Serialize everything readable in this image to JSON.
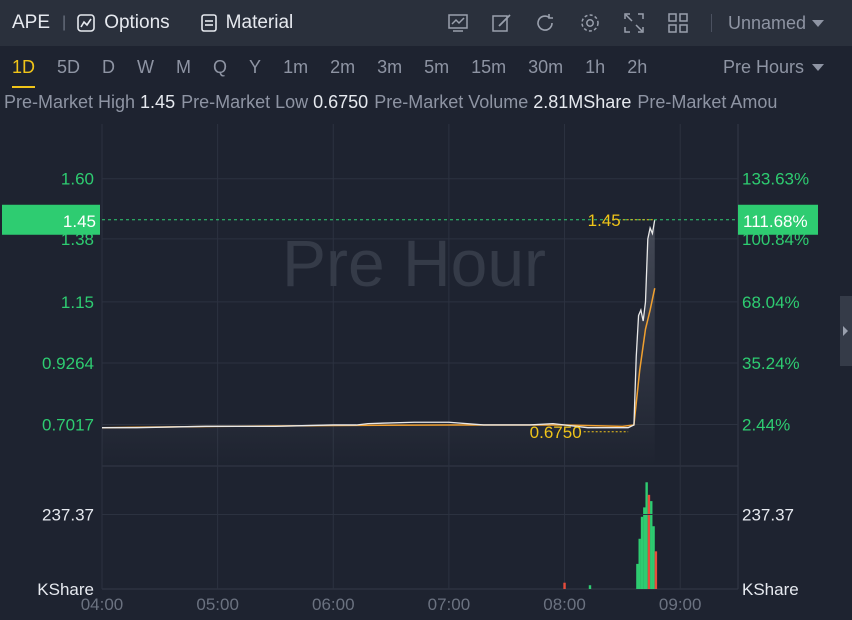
{
  "toolbar": {
    "symbol": "APE",
    "options_label": "Options",
    "material_label": "Material",
    "layout_name": "Unnamed",
    "icons": [
      "indicator-icon",
      "draw-icon",
      "refresh-icon",
      "settings-icon",
      "fullscreen-icon",
      "layout-grid-icon"
    ]
  },
  "periods": [
    "1D",
    "5D",
    "D",
    "W",
    "M",
    "Q",
    "Y",
    "1m",
    "2m",
    "3m",
    "5m",
    "15m",
    "30m",
    "1h",
    "2h"
  ],
  "active_period": "1D",
  "session_label": "Pre Hours",
  "stats": [
    {
      "label": "Pre-Market High",
      "value": "1.45"
    },
    {
      "label": "Pre-Market Low",
      "value": "0.6750"
    },
    {
      "label": "Pre-Market Volume",
      "value": "2.81MShare"
    },
    {
      "label": "Pre-Market Amou",
      "value": ""
    }
  ],
  "colors": {
    "background": "#1e2330",
    "up": "#2ecc71",
    "down": "#e74c3c",
    "price_line": "#e8e8e8",
    "avg_line": "#f0a030",
    "highlight": "#f0c419",
    "badge": "#2ecc71"
  },
  "chart_data": {
    "type": "line",
    "watermark": "Pre Hour",
    "x_ticks": [
      "04:00",
      "05:00",
      "06:00",
      "07:00",
      "08:00",
      "09:00"
    ],
    "y_ticks_left": [
      "1.60",
      "1.38",
      "1.15",
      "0.9264",
      "0.7017"
    ],
    "y_ticks_right": [
      "133.63%",
      "100.84%",
      "68.04%",
      "35.24%",
      "2.44%"
    ],
    "y_values": [
      1.6,
      1.38,
      1.15,
      0.9264,
      0.7017
    ],
    "ylim": [
      0.55,
      1.8
    ],
    "current_price": "1.45",
    "current_pct": "111.68%",
    "high_label": "1.45",
    "low_label": "0.6750",
    "volume_tick": "237.37",
    "volume_unit": "KShare",
    "price": {
      "x": [
        4.0,
        4.3,
        4.9,
        5.5,
        6.0,
        6.2,
        6.3,
        6.7,
        7.0,
        7.3,
        7.7,
        7.9,
        8.2,
        8.4,
        8.55,
        8.6,
        8.62,
        8.64,
        8.66,
        8.68,
        8.7,
        8.72,
        8.74,
        8.76,
        8.78
      ],
      "y": [
        0.69,
        0.69,
        0.695,
        0.695,
        0.7,
        0.7,
        0.705,
        0.71,
        0.71,
        0.7,
        0.7,
        0.705,
        0.69,
        0.69,
        0.69,
        0.7,
        0.95,
        1.1,
        1.12,
        1.08,
        1.15,
        1.38,
        1.42,
        1.4,
        1.45
      ]
    },
    "average": {
      "x": [
        4.0,
        5.0,
        6.0,
        7.0,
        8.0,
        8.5,
        8.6,
        8.65,
        8.7,
        8.74,
        8.78
      ],
      "y": [
        0.69,
        0.695,
        0.698,
        0.7,
        0.7,
        0.695,
        0.7,
        0.9,
        1.05,
        1.12,
        1.2
      ]
    },
    "volume": [
      {
        "x": 8.0,
        "v": 20,
        "up": false
      },
      {
        "x": 8.22,
        "v": 12,
        "up": true
      },
      {
        "x": 8.63,
        "v": 80,
        "up": true
      },
      {
        "x": 8.65,
        "v": 160,
        "up": true
      },
      {
        "x": 8.67,
        "v": 230,
        "up": true
      },
      {
        "x": 8.69,
        "v": 260,
        "up": true
      },
      {
        "x": 8.71,
        "v": 340,
        "up": true
      },
      {
        "x": 8.73,
        "v": 300,
        "up": false
      },
      {
        "x": 8.75,
        "v": 280,
        "up": true
      },
      {
        "x": 8.77,
        "v": 200,
        "up": true
      },
      {
        "x": 8.79,
        "v": 120,
        "up": false
      }
    ],
    "volume_max": 360
  }
}
